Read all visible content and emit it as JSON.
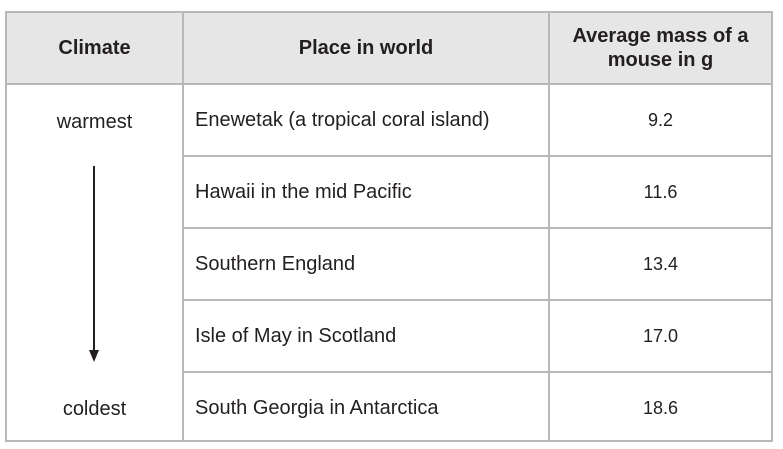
{
  "table": {
    "headers": {
      "climate": "Climate",
      "place": "Place in world",
      "mass": "Average mass of a mouse in g"
    },
    "climate_top": "warmest",
    "climate_bottom": "coldest",
    "arrow_icon": "arrow-down",
    "rows": [
      {
        "place": "Enewetak (a tropical coral island)",
        "mass": "9.2"
      },
      {
        "place": "Hawaii in the mid Pacific",
        "mass": "11.6"
      },
      {
        "place": "Southern England",
        "mass": "13.4"
      },
      {
        "place": "Isle of May in Scotland",
        "mass": "17.0"
      },
      {
        "place": "South Georgia in Antarctica",
        "mass": "18.6"
      }
    ]
  }
}
